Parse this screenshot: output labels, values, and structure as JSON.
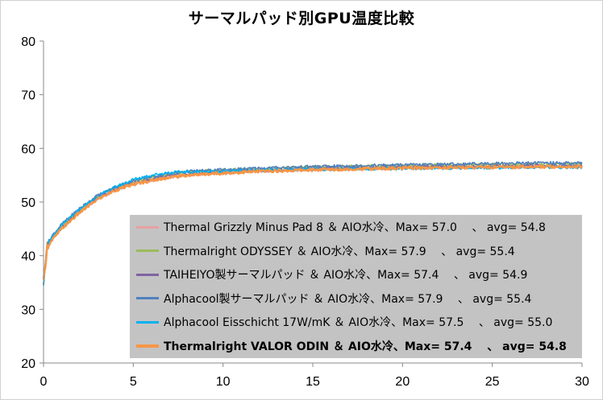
{
  "chart_data": {
    "type": "line",
    "title": "サーマルパッド別GPU温度比較",
    "xlabel": "",
    "ylabel": "",
    "xlim": [
      0,
      30
    ],
    "ylim": [
      20,
      80
    ],
    "x_ticks": [
      "0",
      "5",
      "10",
      "15",
      "20",
      "25",
      "30"
    ],
    "y_ticks": [
      "20",
      "30",
      "40",
      "50",
      "60",
      "70",
      "80"
    ],
    "grid": false,
    "legend_position": "bottom-right",
    "series": [
      {
        "name": "Thermal Grizzly Minus Pad 8 ＆ AIO水冷、Max= 57.0 　、 avg= 54.8",
        "color": "#e8a0a0",
        "bold": false,
        "points": [
          [
            0,
            35
          ],
          [
            0.2,
            41.5
          ],
          [
            0.5,
            43
          ],
          [
            1,
            45
          ],
          [
            2,
            48
          ],
          [
            3,
            50.5
          ],
          [
            4,
            52.2
          ],
          [
            5,
            53.3
          ],
          [
            6,
            54
          ],
          [
            7,
            54.6
          ],
          [
            8,
            55
          ],
          [
            10,
            55.4
          ],
          [
            12,
            55.7
          ],
          [
            15,
            56
          ],
          [
            18,
            56.2
          ],
          [
            20,
            56.3
          ],
          [
            22,
            56.4
          ],
          [
            25,
            56.5
          ],
          [
            28,
            56.6
          ],
          [
            30,
            56.6
          ]
        ]
      },
      {
        "name": "Thermalright ODYSSEY ＆ AIO水冷、Max= 57.9 　、 avg= 55.4",
        "color": "#9bbb59",
        "bold": false,
        "points": [
          [
            0,
            35
          ],
          [
            0.2,
            42
          ],
          [
            0.5,
            43.5
          ],
          [
            1,
            45.5
          ],
          [
            2,
            48.5
          ],
          [
            3,
            51
          ],
          [
            4,
            52.7
          ],
          [
            5,
            53.8
          ],
          [
            6,
            54.6
          ],
          [
            7,
            55.2
          ],
          [
            8,
            55.6
          ],
          [
            10,
            55.9
          ],
          [
            12,
            56.2
          ],
          [
            15,
            56.5
          ],
          [
            18,
            56.7
          ],
          [
            20,
            56.8
          ],
          [
            22,
            56.9
          ],
          [
            25,
            57
          ],
          [
            28,
            57.1
          ],
          [
            30,
            57.1
          ]
        ]
      },
      {
        "name": "TAIHEIYO製サーマルパッド ＆ AIO水冷、Max= 57.4 　、 avg= 54.9",
        "color": "#8064a2",
        "bold": false,
        "points": [
          [
            0,
            35
          ],
          [
            0.2,
            41.8
          ],
          [
            0.5,
            43.2
          ],
          [
            1,
            45.2
          ],
          [
            2,
            48.2
          ],
          [
            3,
            50.7
          ],
          [
            4,
            52.4
          ],
          [
            5,
            53.5
          ],
          [
            6,
            54.2
          ],
          [
            7,
            54.8
          ],
          [
            8,
            55.2
          ],
          [
            10,
            55.6
          ],
          [
            12,
            55.9
          ],
          [
            15,
            56.2
          ],
          [
            18,
            56.4
          ],
          [
            20,
            56.5
          ],
          [
            22,
            56.6
          ],
          [
            25,
            56.7
          ],
          [
            28,
            56.8
          ],
          [
            30,
            56.8
          ]
        ]
      },
      {
        "name": "Alphacool製サーマルパッド ＆ AIO水冷、Max= 57.9 　、 avg= 55.4",
        "color": "#4f81bd",
        "bold": false,
        "points": [
          [
            0,
            35
          ],
          [
            0.2,
            42.2
          ],
          [
            0.5,
            43.8
          ],
          [
            1,
            45.8
          ],
          [
            2,
            48.8
          ],
          [
            3,
            51.2
          ],
          [
            4,
            52.8
          ],
          [
            5,
            53.9
          ],
          [
            6,
            54.7
          ],
          [
            7,
            55.3
          ],
          [
            8,
            55.7
          ],
          [
            10,
            56
          ],
          [
            12,
            56.3
          ],
          [
            15,
            56.6
          ],
          [
            18,
            56.8
          ],
          [
            20,
            56.9
          ],
          [
            22,
            57
          ],
          [
            25,
            57.2
          ],
          [
            28,
            57.3
          ],
          [
            30,
            57.2
          ]
        ]
      },
      {
        "name": "Alphacool Eisschicht 17W/mK ＆ AIO水冷、Max= 57.5 　、 avg= 55.0",
        "color": "#00b0f0",
        "bold": false,
        "points": [
          [
            0,
            35
          ],
          [
            0.2,
            42
          ],
          [
            0.5,
            43.5
          ],
          [
            1,
            45.6
          ],
          [
            2,
            48.6
          ],
          [
            3,
            51
          ],
          [
            4,
            52.8
          ],
          [
            5,
            54.2
          ],
          [
            6,
            55
          ],
          [
            7,
            55.5
          ],
          [
            8,
            55.6
          ],
          [
            10,
            55.7
          ],
          [
            12,
            55.9
          ],
          [
            15,
            56.1
          ],
          [
            18,
            56.2
          ],
          [
            20,
            56.2
          ],
          [
            22,
            56.3
          ],
          [
            25,
            56.4
          ],
          [
            28,
            56.5
          ],
          [
            30,
            56.4
          ]
        ]
      },
      {
        "name": "Thermalright VALOR ODIN ＆ AIO水冷、Max= 57.4 　、 avg= 54.8",
        "color": "#f79646",
        "bold": true,
        "points": [
          [
            0,
            35
          ],
          [
            0.2,
            41.6
          ],
          [
            0.5,
            43
          ],
          [
            1,
            45
          ],
          [
            2,
            48
          ],
          [
            3,
            50.5
          ],
          [
            4,
            52.2
          ],
          [
            5,
            53.3
          ],
          [
            6,
            54
          ],
          [
            7,
            54.6
          ],
          [
            8,
            55
          ],
          [
            10,
            55.4
          ],
          [
            12,
            55.7
          ],
          [
            15,
            56
          ],
          [
            18,
            56.2
          ],
          [
            20,
            56.3
          ],
          [
            22,
            56.4
          ],
          [
            25,
            56.5
          ],
          [
            28,
            56.6
          ],
          [
            30,
            56.6
          ]
        ]
      }
    ]
  }
}
